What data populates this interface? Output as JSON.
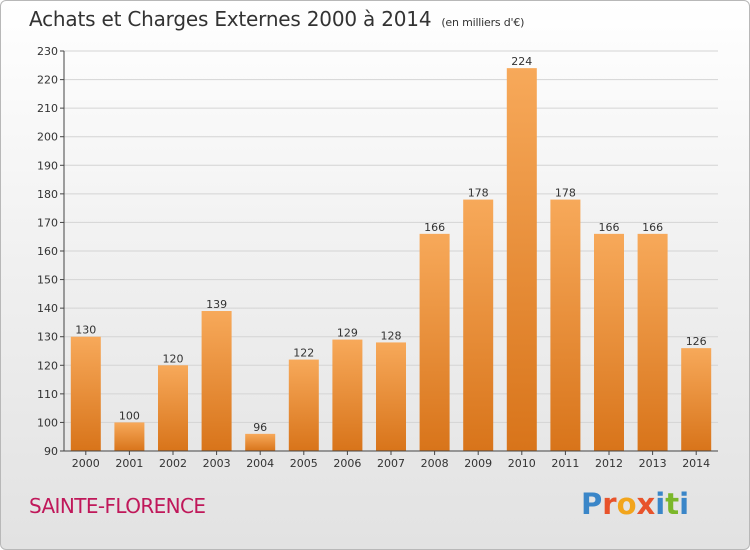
{
  "header": {
    "title": "Achats et Charges Externes 2000 à 2014",
    "subtitle": "(en milliers d'€)"
  },
  "footer": {
    "commune": "SAINTE-FLORENCE",
    "logo_letters": [
      "P",
      "r",
      "o",
      "x",
      "i",
      "t",
      "i"
    ],
    "logo_colors": [
      "#3a86c8",
      "#e8532b",
      "#f2a51c",
      "#e8532b",
      "#3a86c8",
      "#7bb72a",
      "#3a86c8"
    ]
  },
  "colors": {
    "bar_light": "#f7a95a",
    "bar_dark": "#d8741a",
    "grid": "#d4d4d4",
    "axis": "#444444"
  },
  "chart_data": {
    "type": "bar",
    "title": "Achats et Charges Externes 2000 à 2014",
    "subtitle": "(en milliers d'€)",
    "categories": [
      "2000",
      "2001",
      "2002",
      "2003",
      "2004",
      "2005",
      "2006",
      "2007",
      "2008",
      "2009",
      "2010",
      "2011",
      "2012",
      "2013",
      "2014"
    ],
    "values": [
      130,
      100,
      120,
      139,
      96,
      122,
      129,
      128,
      166,
      178,
      224,
      178,
      166,
      166,
      126
    ],
    "xlabel": "",
    "ylabel": "",
    "ylim": [
      90,
      230
    ],
    "yticks": [
      90,
      100,
      110,
      120,
      130,
      140,
      150,
      160,
      170,
      180,
      190,
      200,
      210,
      220,
      230
    ],
    "grid": true,
    "legend": "none"
  }
}
